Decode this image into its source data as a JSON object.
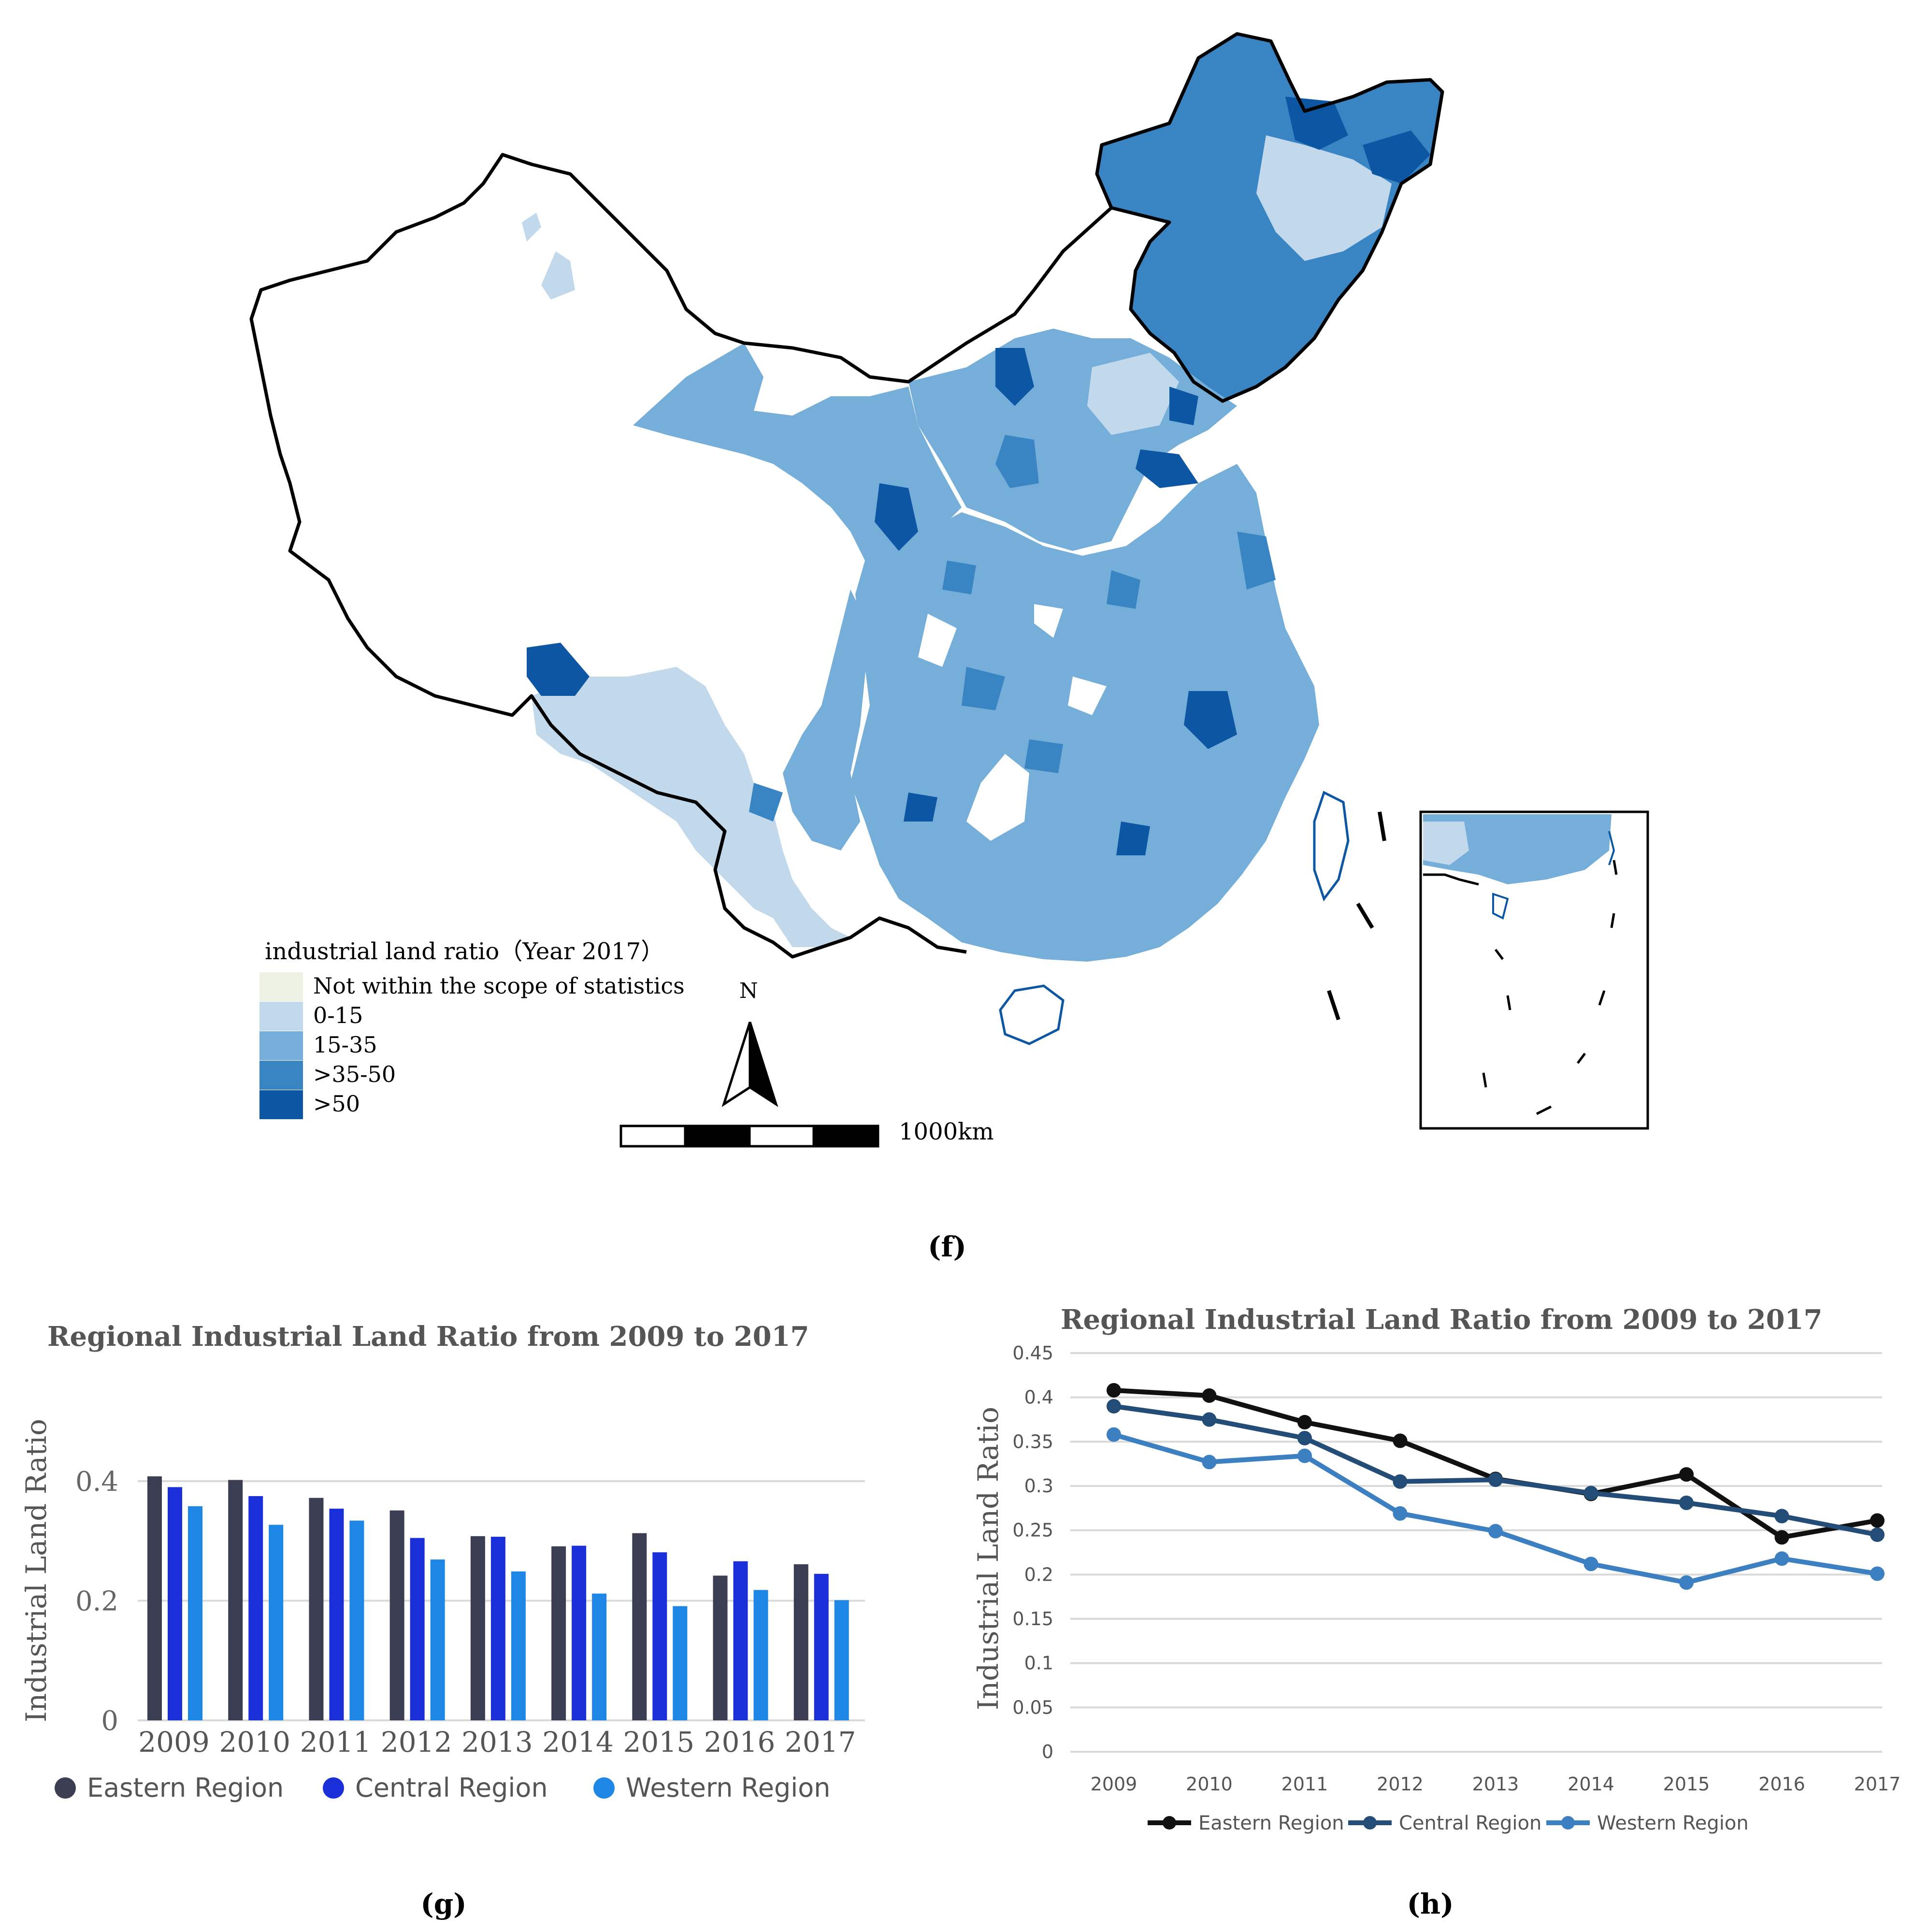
{
  "panels": {
    "f": "(f)",
    "g": "(g)",
    "h": "(h)"
  },
  "map": {
    "legend_title": "industrial land ratio（Year 2017）",
    "legend": [
      {
        "label": "Not within the scope of statistics",
        "color": "#eef2e4"
      },
      {
        "label": "0-15",
        "color": "#c2d9ec"
      },
      {
        "label": "15-35",
        "color": "#74aed9"
      },
      {
        "label": ">35-50",
        "color": "#3985c4"
      },
      {
        "label": ">50",
        "color": "#0d56a3"
      }
    ],
    "north_label": "N",
    "scale_label": "1000km"
  },
  "colors": {
    "eastern_bar": "#3b3e52",
    "central_bar": "#1b2fd9",
    "western_bar": "#1e87e6",
    "eastern_line": "#111111",
    "central_line": "#234d77",
    "western_line": "#3d80c2",
    "grid": "#d9d9d9",
    "map_stroke": "#000000"
  },
  "chart_data": [
    {
      "type": "bar",
      "title": "Regional Industrial Land Ratio from 2009 to 2017",
      "xlabel": "",
      "ylabel": "Industrial Land Ratio",
      "categories": [
        "2009",
        "2010",
        "2011",
        "2012",
        "2013",
        "2014",
        "2015",
        "2016",
        "2017"
      ],
      "series": [
        {
          "name": "Eastern Region",
          "values": [
            0.408,
            0.402,
            0.372,
            0.351,
            0.308,
            0.291,
            0.313,
            0.242,
            0.261
          ]
        },
        {
          "name": "Central Region",
          "values": [
            0.39,
            0.375,
            0.354,
            0.305,
            0.307,
            0.292,
            0.281,
            0.266,
            0.245
          ]
        },
        {
          "name": "Western Region",
          "values": [
            0.358,
            0.327,
            0.334,
            0.269,
            0.249,
            0.212,
            0.191,
            0.218,
            0.201
          ]
        }
      ],
      "ylim": [
        0,
        0.4
      ],
      "yticks": [
        "0",
        "0.2",
        "0.4"
      ],
      "legend": "bottom",
      "grid": true
    },
    {
      "type": "line",
      "title": "Regional Industrial Land Ratio from 2009 to 2017",
      "xlabel": "",
      "ylabel": "Industrial Land Ratio",
      "categories": [
        "2009",
        "2010",
        "2011",
        "2012",
        "2013",
        "2014",
        "2015",
        "2016",
        "2017"
      ],
      "series": [
        {
          "name": "Eastern Region",
          "values": [
            0.408,
            0.402,
            0.372,
            0.351,
            0.308,
            0.291,
            0.313,
            0.242,
            0.261
          ]
        },
        {
          "name": "Central Region",
          "values": [
            0.39,
            0.375,
            0.354,
            0.305,
            0.307,
            0.292,
            0.281,
            0.266,
            0.245
          ]
        },
        {
          "name": "Western Region",
          "values": [
            0.358,
            0.327,
            0.334,
            0.269,
            0.249,
            0.212,
            0.191,
            0.218,
            0.201
          ]
        }
      ],
      "ylim": [
        0,
        0.45
      ],
      "yticks": [
        "0",
        "0.05",
        "0.1",
        "0.15",
        "0.2",
        "0.25",
        "0.3",
        "0.35",
        "0.4",
        "0.45"
      ],
      "legend": "bottom",
      "grid": true
    }
  ]
}
